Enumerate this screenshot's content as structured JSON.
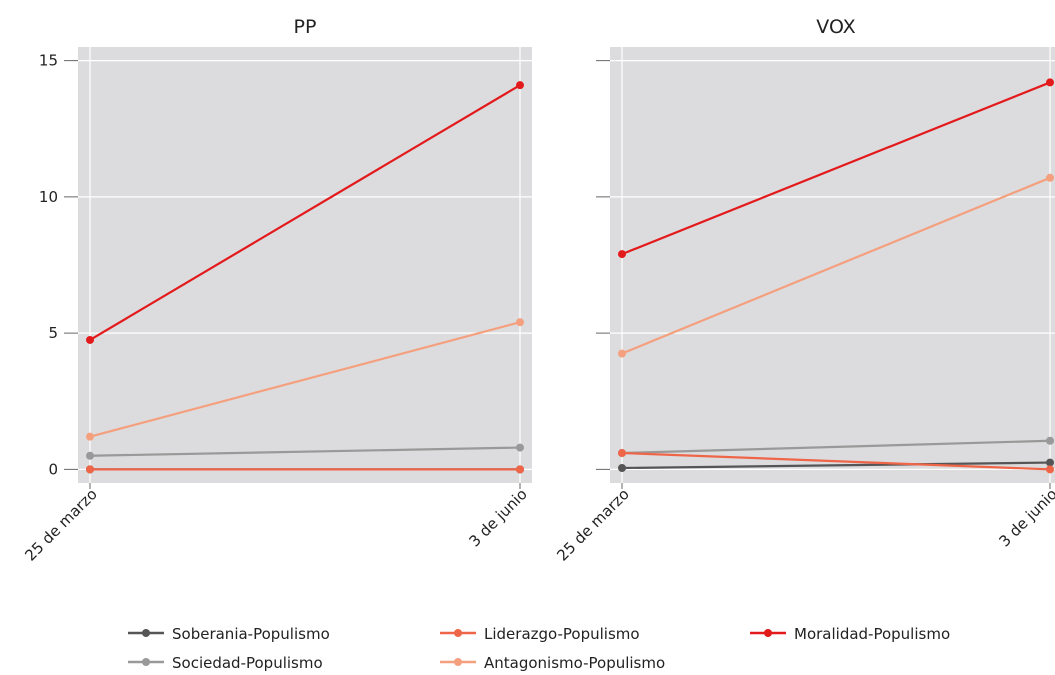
{
  "chart_data": [
    {
      "type": "line",
      "title": "PP",
      "categories": [
        "25 de marzo",
        "3 de junio"
      ],
      "ylim": [
        -0.5,
        15.5
      ],
      "yticks": [
        0,
        5,
        10,
        15
      ],
      "grid": true,
      "series": [
        {
          "name": "Soberania-Populismo",
          "color": "#555555",
          "values": [
            0,
            0
          ]
        },
        {
          "name": "Sociedad-Populismo",
          "color": "#999999",
          "values": [
            0.5,
            0.8
          ]
        },
        {
          "name": "Liderazgo-Populismo",
          "color": "#ef6548",
          "values": [
            0,
            0
          ]
        },
        {
          "name": "Antagonismo-Populismo",
          "color": "#f4a07e",
          "values": [
            1.2,
            5.4
          ]
        },
        {
          "name": "Moralidad-Populismo",
          "color": "#e31a1c",
          "values": [
            4.75,
            14.1
          ]
        }
      ]
    },
    {
      "type": "line",
      "title": "VOX",
      "categories": [
        "25 de marzo",
        "3 de junio"
      ],
      "ylim": [
        -0.5,
        15.5
      ],
      "yticks": [
        0,
        5,
        10,
        15
      ],
      "grid": true,
      "series": [
        {
          "color": "#555555",
          "values": [
            0.05,
            0.25
          ]
        },
        {
          "color": "#999999",
          "values": [
            0.6,
            1.05
          ]
        },
        {
          "color": "#ef6548",
          "values": [
            0.6,
            0
          ]
        },
        {
          "color": "#f4a07e",
          "values": [
            4.25,
            10.7
          ]
        },
        {
          "color": "#e31a1c",
          "values": [
            7.9,
            14.2
          ]
        }
      ]
    }
  ]
}
